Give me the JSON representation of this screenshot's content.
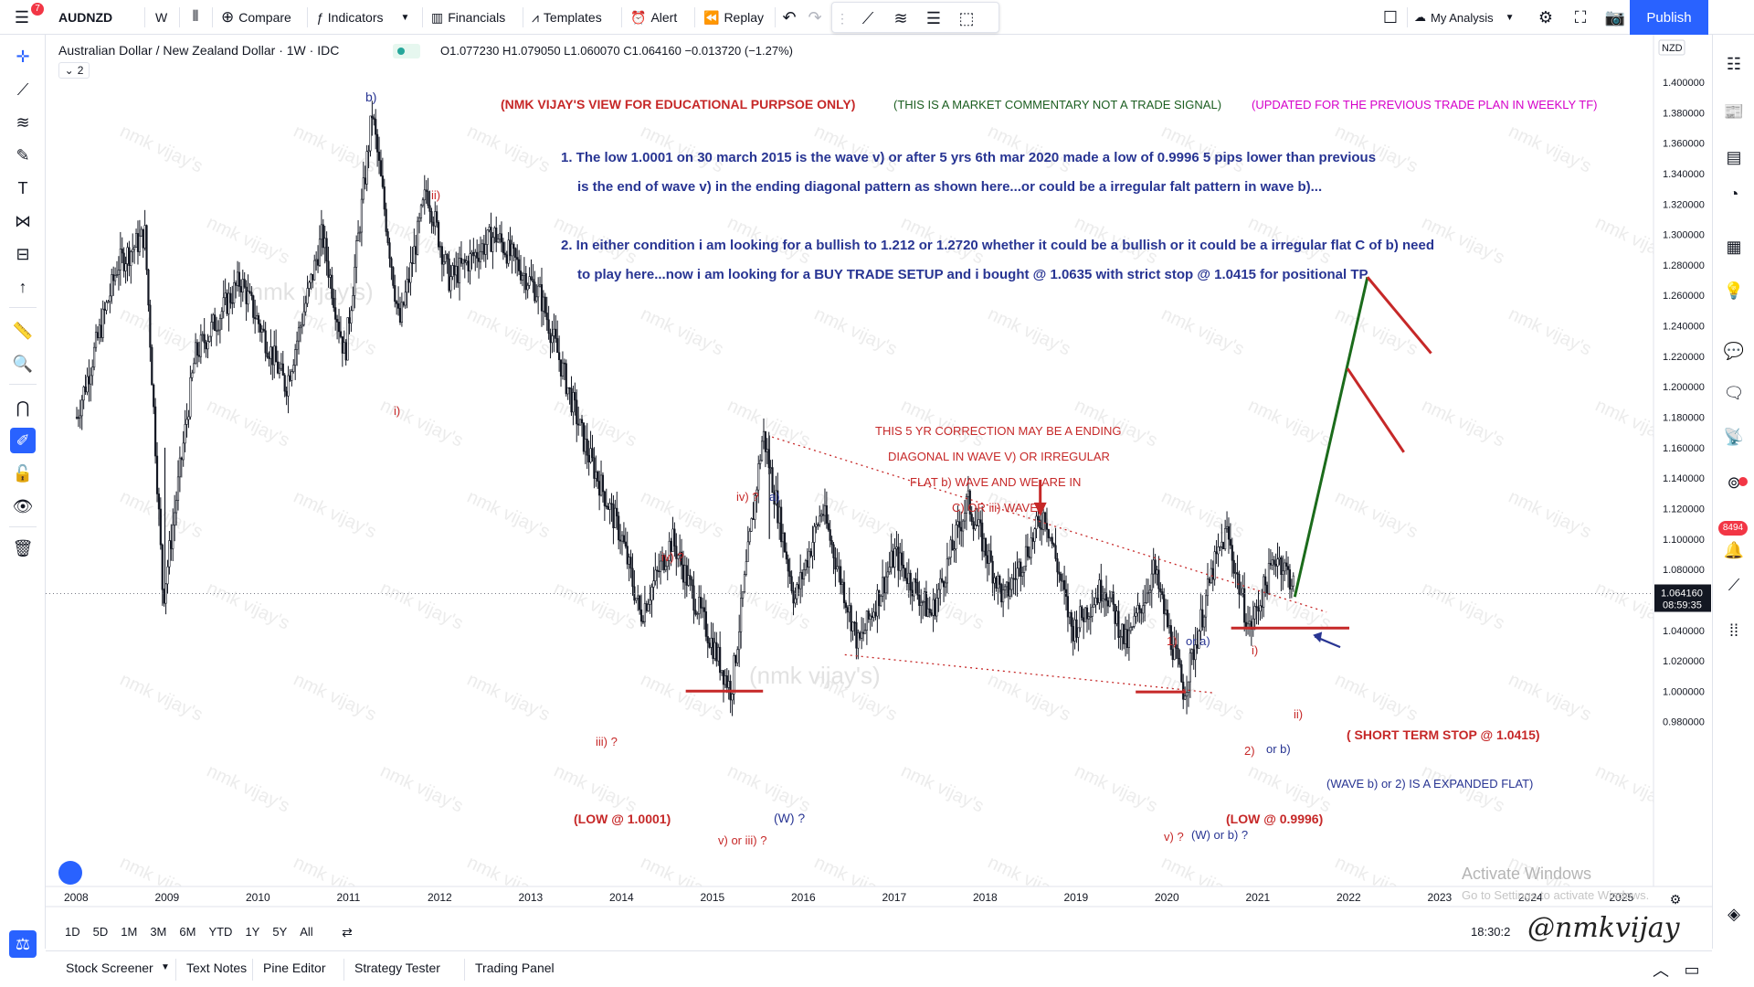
{
  "toolbar": {
    "symbol": "AUDNZD",
    "interval": "W",
    "compare": "Compare",
    "indicators": "Indicators",
    "financials": "Financials",
    "templates": "Templates",
    "alert": "Alert",
    "replay": "Replay",
    "layout_name": "My Analysis",
    "publish": "Publish",
    "notification_count": "7"
  },
  "legend": {
    "title": "Australian Dollar / New Zealand Dollar · 1W · IDC",
    "ohlc": "O1.077230 H1.079050 L1.060070 C1.064160 −0.013720 (−1.27%)",
    "collapse": "2"
  },
  "price_axis": {
    "currency": "NZD",
    "ticks": [
      "1.400000",
      "1.380000",
      "1.360000",
      "1.340000",
      "1.320000",
      "1.300000",
      "1.280000",
      "1.260000",
      "1.240000",
      "1.220000",
      "1.200000",
      "1.180000",
      "1.160000",
      "1.140000",
      "1.120000",
      "1.100000",
      "1.080000",
      "1.060000",
      "1.040000",
      "1.020000",
      "1.000000",
      "0.980000"
    ],
    "current_price": "1.064160",
    "countdown": "08:59:35"
  },
  "time_axis": {
    "ticks": [
      "2008",
      "2009",
      "2010",
      "2011",
      "2012",
      "2013",
      "2014",
      "2015",
      "2016",
      "2017",
      "2018",
      "2019",
      "2020",
      "2021",
      "2022",
      "2023",
      "2024",
      "2025"
    ]
  },
  "range_buttons": [
    "1D",
    "5D",
    "1M",
    "3M",
    "6M",
    "YTD",
    "1Y",
    "5Y",
    "All"
  ],
  "clock": "18:30:2",
  "bottom_tabs": [
    "Stock Screener",
    "Text Notes",
    "Pine Editor",
    "Strategy Tester",
    "Trading Panel"
  ],
  "annotations": {
    "header_red": "(NMK VIJAY'S VIEW FOR EDUCATIONAL PURPSOE ONLY)",
    "header_green": "(THIS IS A MARKET COMMENTARY NOT A TRADE SIGNAL)",
    "header_magenta": "(UPDATED FOR THE PREVIOUS TRADE PLAN IN WEEKLY TF)",
    "p1_line1": "1. The low 1.0001 on 30 march 2015 is the wave v) or after 5 yrs 6th mar 2020 made a low of 0.9996 5 pips lower than previous",
    "p1_line2": "is the end of wave v)  in the ending diagonal pattern as shown here...or could be a irregular falt pattern in wave b)...",
    "p2_line1": "2. In either condition i am looking for a bullish to 1.212 or 1.2720 whether it could be a bullish or it could be a irregular flat C of b) need",
    "p2_line2": "to play here...now i am looking for a BUY TRADE SETUP and i bought @ 1.0635 with strict stop @ 1.0415 for positional TP",
    "correction_1": "THIS 5 YR CORRECTION MAY BE A ENDING",
    "correction_2": "DIAGONAL IN WAVE V) OR IRREGULAR",
    "correction_3": "FLAT b) WAVE AND WE ARE IN",
    "correction_4": "C) OR iii) WAVE)",
    "wave_b": "b)",
    "wave_ii_top": "ii)",
    "wave_i_left": "i)",
    "wave_iv_a": "iv) ?",
    "wave_a": "a)",
    "wave_iv_b": "iv) ?",
    "wave_iii": "iii) ?",
    "low_2015": "(LOW @ 1.0001)",
    "wave_w": "(W) ?",
    "wave_v_iii": "v) or iii) ?",
    "wave_1_red": "1)",
    "wave_1_or": "or a)",
    "wave_i_right": "i)",
    "wave_ii_right": "ii)",
    "wave_2_red": "2)",
    "wave_2_or": "or b)",
    "short_stop": "( SHORT TERM STOP @ 1.0415)",
    "expanded_flat": "(WAVE b) or 2) IS A EXPANDED FLAT)",
    "low_2020": "(LOW @ 0.9996)",
    "wave_v_red": "v) ?",
    "wave_wb": "(W) or b) ?",
    "activate_1": "Activate Windows",
    "activate_2": "Go to Settings to activate Windows.",
    "signature": "@nmkvijay",
    "watermark": "nmk vijay's",
    "watermark_center": "(nmk vijay's)"
  },
  "colors": {
    "accent": "#2962ff",
    "up": "#131722",
    "bearish_line": "#c62828",
    "bullish_line": "#1b6b1b"
  }
}
